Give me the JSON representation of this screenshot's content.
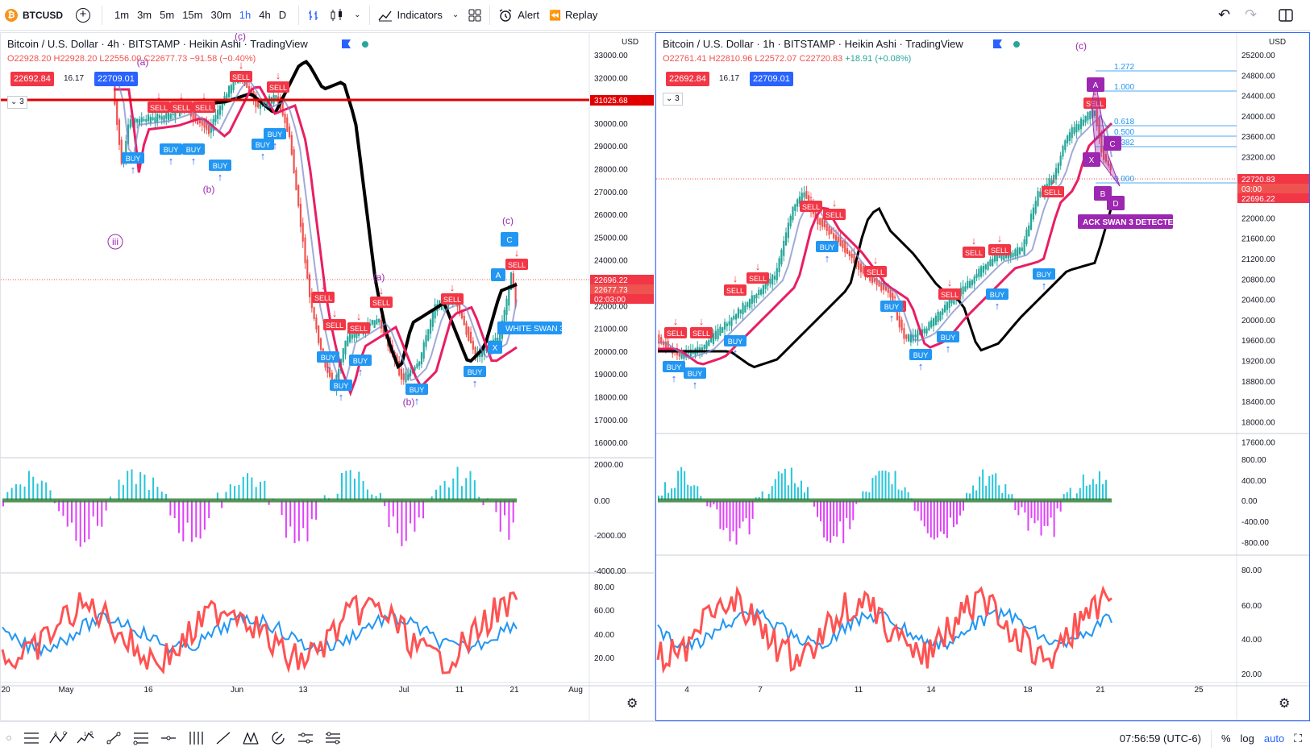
{
  "toolbar": {
    "symbol": "BTCUSD",
    "symbol_icon": "₿",
    "timeframes": [
      "1m",
      "3m",
      "5m",
      "15m",
      "30m",
      "1h",
      "4h",
      "D"
    ],
    "active_timeframe": "1h",
    "indicators_label": "Indicators",
    "alert_label": "Alert",
    "replay_label": "Replay"
  },
  "left_chart": {
    "title": "Bitcoin / U.S. Dollar · 4h · BITSTAMP · Heikin Ashi · TradingView",
    "ohlc_o": "O22928.20",
    "ohlc_h": "H22928.20",
    "ohlc_l": "L22556.00",
    "ohlc_c": "C22677.73",
    "ohlc_chg": "−91.58 (−0.40%)",
    "bid": "22692.84",
    "spread": "16.17",
    "ask": "22709.01",
    "collapse": "3",
    "currency": "USD",
    "price_ticks": [
      "33000.00",
      "32000.00",
      "31000.00",
      "30000.00",
      "29000.00",
      "28000.00",
      "27000.00",
      "26000.00",
      "25000.00",
      "24000.00",
      "23000.00",
      "22000.00",
      "21000.00",
      "20000.00",
      "19000.00",
      "18000.00",
      "17000.00",
      "16000.00"
    ],
    "hline_label": "31025.68",
    "last_labels": [
      "22696.22",
      "22677.73",
      "02:03:00"
    ],
    "osc_ticks": [
      "2000.00",
      "0.00",
      "-2000.00",
      "-4000.00"
    ],
    "rsi_ticks": [
      "80.00",
      "60.00",
      "40.00",
      "20.00"
    ],
    "time_ticks": [
      "20",
      "May",
      "16",
      "Jun",
      "13",
      "Jul",
      "11",
      "21",
      "Aug"
    ],
    "wave_labels": [
      "(c)",
      "(a)",
      "(b)",
      "iii",
      "(a)",
      "(b)",
      "(c)"
    ],
    "swan_label": "WHITE SWAN 3"
  },
  "right_chart": {
    "title": "Bitcoin / U.S. Dollar · 1h · BITSTAMP · Heikin Ashi · TradingView",
    "ohlc_o": "O22761.41",
    "ohlc_h": "H22810.96",
    "ohlc_l": "L22572.07",
    "ohlc_c": "C22720.83",
    "ohlc_chg": "+18.91 (+0.08%)",
    "bid": "22692.84",
    "spread": "16.17",
    "ask": "22709.01",
    "collapse": "3",
    "currency": "USD",
    "price_ticks": [
      "25200.00",
      "24800.00",
      "24400.00",
      "24000.00",
      "23600.00",
      "23200.00",
      "22800.00",
      "22400.00",
      "22000.00",
      "21600.00",
      "21200.00",
      "20800.00",
      "20400.00",
      "20000.00",
      "19600.00",
      "19200.00",
      "18800.00",
      "18400.00",
      "18000.00",
      "17600.00"
    ],
    "last_labels": [
      "22720.83",
      "03:00",
      "22696.22"
    ],
    "osc_ticks": [
      "800.00",
      "400.00",
      "0.00",
      "-400.00",
      "-800.00"
    ],
    "rsi_ticks": [
      "80.00",
      "60.00",
      "40.00",
      "20.00"
    ],
    "time_ticks": [
      "4",
      "7",
      "11",
      "14",
      "18",
      "21",
      "25"
    ],
    "fib_labels": [
      "1.272",
      "1.000",
      "0.618",
      "0.500",
      "0.382",
      "0.000"
    ],
    "wave_label": "(c)",
    "pattern_points": [
      "A",
      "C",
      "X",
      "B",
      "D"
    ],
    "swan_label": "ACK SWAN 3 DETECTED"
  },
  "signals": {
    "buy": "BUY",
    "sell": "SELL"
  },
  "status": {
    "clock": "07:56:59 (UTC-6)",
    "percent": "%",
    "log": "log",
    "auto": "auto"
  },
  "colors": {
    "up": "#26a69a",
    "down": "#ef5350",
    "sell_box": "#f23645",
    "buy_box": "#2196f3",
    "hline": "#e00000",
    "ma_black": "#000000",
    "ma_red": "#e91e63",
    "purple": "#9c27b0",
    "cyan": "#26c6da",
    "magenta": "#e040fb"
  }
}
